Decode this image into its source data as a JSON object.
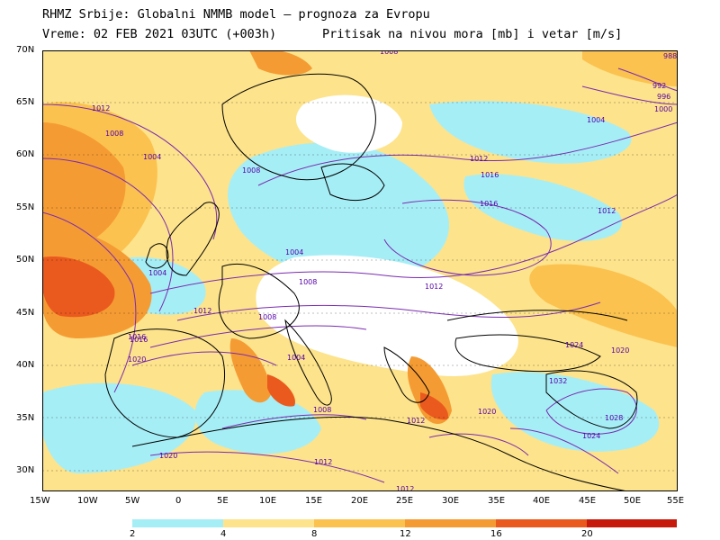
{
  "header": {
    "line1": "RHMZ Srbije: Globalni NMMB model — prognoza za Evropu",
    "line2": "Vreme: 02 FEB 2021 03UTC (+003h)",
    "line3": "Pritisak na nivou mora [mb] i vetar [m/s]"
  },
  "map": {
    "lon_range": [
      -15,
      55
    ],
    "lat_range": [
      28,
      70
    ],
    "lat_labels": [
      "70N",
      "65N",
      "60N",
      "55N",
      "50N",
      "45N",
      "40N",
      "35N",
      "30N"
    ],
    "lon_labels": [
      "15W",
      "10W",
      "5W",
      "0",
      "5E",
      "10E",
      "15E",
      "20E",
      "25E",
      "30E",
      "35E",
      "40E",
      "45E",
      "50E",
      "55E"
    ],
    "isobar_labels": [
      "1008",
      "988",
      "992",
      "996",
      "1000",
      "1004",
      "1012",
      "1008",
      "1012",
      "1016",
      "1012",
      "1004",
      "1008",
      "1004",
      "1008",
      "1016",
      "1004",
      "1012",
      "1008",
      "1012",
      "1016",
      "1020",
      "1004",
      "1008",
      "1012",
      "1020",
      "1016",
      "1024",
      "1032",
      "1020",
      "1028",
      "1024",
      "1020",
      "1012",
      "1012"
    ],
    "wind_colors": [
      "#a6eef6",
      "#fde38b",
      "#fbc24f",
      "#f59b33",
      "#ea5a1e",
      "#c61a0c"
    ],
    "isobar_color": "#7a2bb0",
    "label_color": "#5500aa"
  },
  "colorbar": {
    "labels": [
      "2",
      "4",
      "8",
      "12",
      "16",
      "20"
    ],
    "colors": [
      "#a6eef6",
      "#fde38b",
      "#fbc24f",
      "#f59b33",
      "#ea5a1e",
      "#c61a0c"
    ]
  }
}
